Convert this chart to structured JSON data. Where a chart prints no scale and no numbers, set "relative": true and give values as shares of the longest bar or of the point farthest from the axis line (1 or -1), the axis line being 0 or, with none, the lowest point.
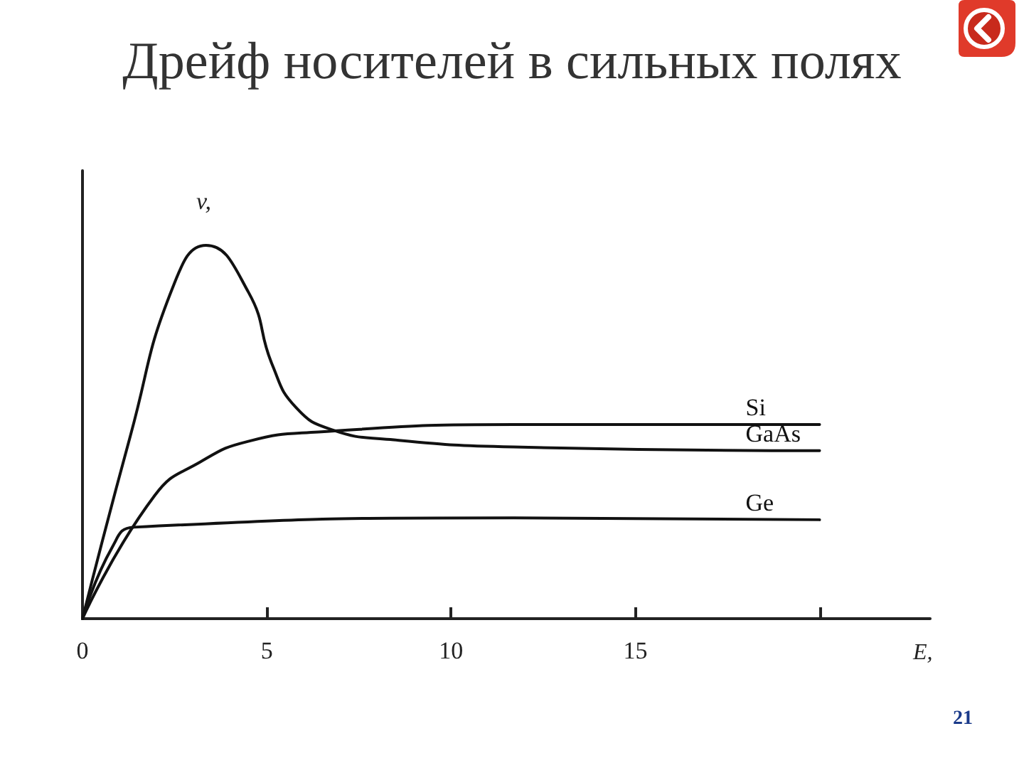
{
  "chart_data": {
    "type": "line",
    "title": "Дрейф носителей в сильных полях",
    "xlabel": "E,",
    "ylabel": "v,",
    "relative": true,
    "annotations": [
      "21"
    ],
    "xlim": [
      0,
      23
    ],
    "xticks": [
      0,
      5,
      10,
      15,
      {
        "value": 20,
        "label": null
      }
    ],
    "grid": false,
    "legend": false,
    "marker": "none",
    "line_style": "solid",
    "series": [
      {
        "name": "GaAs",
        "color": "#111111",
        "x": [
          0,
          1.3,
          2.46,
          3.35,
          4.5,
          5.15,
          5.8,
          6.8,
          8.35,
          11.7,
          20
        ],
        "values": [
          0,
          0.49,
          0.89,
          1,
          0.875,
          0.68,
          0.565,
          0.505,
          0.48,
          0.46,
          0.45
        ]
      },
      {
        "name": "Si",
        "color": "#111111",
        "x": [
          0,
          1.96,
          3.2,
          4.5,
          6.4,
          11.7,
          20
        ],
        "values": [
          0,
          0.33,
          0.42,
          0.475,
          0.5,
          0.52,
          0.52
        ]
      },
      {
        "name": "Ge",
        "color": "#111111",
        "x": [
          0,
          0.8,
          1.4,
          11.7,
          20
        ],
        "values": [
          0,
          0.19,
          0.245,
          0.27,
          0.265
        ]
      }
    ]
  }
}
